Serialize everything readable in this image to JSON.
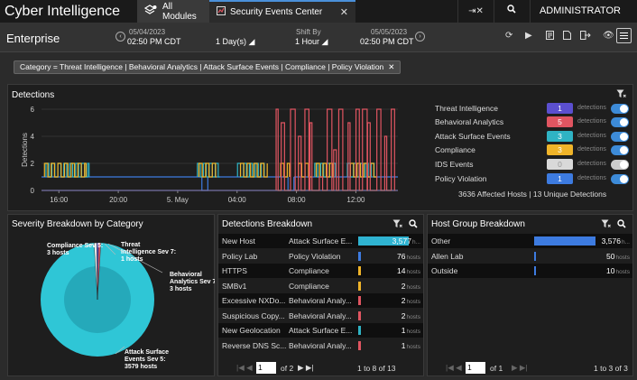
{
  "app": {
    "title": "Cyber Intelligence",
    "admin": "ADMINISTRATOR"
  },
  "tabs": [
    {
      "label": "All Modules"
    },
    {
      "label": "Security Events Center"
    }
  ],
  "timebar": {
    "scope": "Enterprise",
    "start_date": "05/04/2023",
    "start_time": "02:50 PM CDT",
    "range": "1 Day(s)",
    "shift_label": "Shift By",
    "shift_value": "1 Hour",
    "end_date": "05/05/2023",
    "end_time": "02:50 PM CDT"
  },
  "filter": {
    "text": "Category = Threat Intelligence | Behavioral Analytics | Attack Surface Events | Compliance | Policy Violation"
  },
  "detections": {
    "title": "Detections",
    "legend": [
      {
        "name": "Threat Intelligence",
        "count": "1",
        "color": "#5b4fcf",
        "label": "detections",
        "on": true
      },
      {
        "name": "Behavioral Analytics",
        "count": "5",
        "color": "#e05561",
        "label": "detections",
        "on": true
      },
      {
        "name": "Attack Surface Events",
        "count": "3",
        "color": "#2fb3c4",
        "label": "detections",
        "on": true
      },
      {
        "name": "Compliance",
        "count": "3",
        "color": "#f0b429",
        "label": "detections",
        "on": true
      },
      {
        "name": "IDS Events",
        "count": "0",
        "color": "#d9d9d9",
        "label": "detections",
        "on": false
      },
      {
        "name": "Policy Violation",
        "count": "1",
        "color": "#3d7be0",
        "label": "detections",
        "on": true
      }
    ],
    "summary": "3636 Affected Hosts | 13 Unique Detections"
  },
  "chart_data": {
    "type": "line",
    "ylabel": "Detections",
    "ylim": [
      0,
      6
    ],
    "yticks": [
      "0",
      "2",
      "4",
      "6"
    ],
    "xticks": [
      {
        "label": "16:00",
        "t": 1.17
      },
      {
        "label": "20:00",
        "t": 5.17
      },
      {
        "label": "5. May",
        "t": 9.17
      },
      {
        "label": "04:00",
        "t": 13.17
      },
      {
        "label": "08:00",
        "t": 17.17
      },
      {
        "label": "12:00",
        "t": 21.17
      }
    ],
    "xlim": [
      0,
      24
    ],
    "series": [
      {
        "name": "Policy Violation",
        "color": "#3d7be0",
        "style": "flat",
        "level": 1,
        "from": 0,
        "to": 24,
        "gaps": [
          [
            10.8,
            11.2
          ],
          [
            16.6,
            17.0
          ]
        ]
      },
      {
        "name": "Threat Intelligence",
        "color": "#5b4fcf",
        "style": "flat",
        "level": 0,
        "from": 0,
        "to": 24,
        "gaps": []
      },
      {
        "name": "Attack Surface Events",
        "color": "#2fb3c4",
        "style": "square",
        "period": 0.4,
        "lo": 1,
        "hi": 2,
        "ranges": [
          [
            0.3,
            3.2
          ],
          [
            10.5,
            12.0
          ],
          [
            13.2,
            15.0
          ],
          [
            18.4,
            19.8
          ],
          [
            20.6,
            22.5
          ]
        ]
      },
      {
        "name": "Compliance",
        "color": "#f0b429",
        "style": "square",
        "period": 0.45,
        "lo": 1,
        "hi": 2,
        "ranges": [
          [
            0.2,
            3.0
          ],
          [
            10.6,
            11.8
          ],
          [
            13.4,
            15.2
          ],
          [
            16.1,
            16.7
          ],
          [
            17.3,
            18.2
          ],
          [
            18.5,
            19.7
          ],
          [
            20.8,
            22.6
          ]
        ]
      },
      {
        "name": "Behavioral Analytics",
        "color": "#e05561",
        "style": "spikes",
        "lo": 0,
        "hi": 6,
        "ranges": [
          [
            15.8,
            23.8
          ]
        ],
        "period": 0.38
      }
    ]
  },
  "severity": {
    "title": "Severity Breakdown by Category",
    "labels": [
      {
        "text1": "Compliance Sev 5:",
        "text2": "3 hosts"
      },
      {
        "text1": "Threat",
        "text2": "Intelligence Sev 7:",
        "text3": "1 hosts"
      },
      {
        "text1": "Behavioral",
        "text2": "Analytics Sev 7:",
        "text3": "3 hosts"
      },
      {
        "text1": "Attack Surface",
        "text2": "Events Sev 5:",
        "text3": "3579 hosts"
      }
    ],
    "slices": [
      {
        "name": "Attack Surface Events Sev 5",
        "value": 3579,
        "color": "#2fc6d6"
      },
      {
        "name": "Compliance Sev 5",
        "value": 3,
        "color": "#e8e8e8"
      },
      {
        "name": "Threat Intelligence Sev 7",
        "value": 1,
        "color": "#5b4fcf"
      },
      {
        "name": "Behavioral Analytics Sev 7",
        "value": 3,
        "color": "#e05561"
      }
    ]
  },
  "breakdown": {
    "title": "Detections Breakdown",
    "rows": [
      {
        "name": "New Host",
        "category": "Attack Surface E...",
        "value": "3,577",
        "unit": "h...",
        "color": "#2fb3c4",
        "bar": true
      },
      {
        "name": "Policy Lab",
        "category": "Policy Violation",
        "value": "76",
        "unit": "hosts",
        "color": "#3d7be0"
      },
      {
        "name": "HTTPS",
        "category": "Compliance",
        "value": "14",
        "unit": "hosts",
        "color": "#f0b429"
      },
      {
        "name": "SMBv1",
        "category": "Compliance",
        "value": "2",
        "unit": "hosts",
        "color": "#f0b429"
      },
      {
        "name": "Excessive NXDo...",
        "category": "Behavioral Analy...",
        "value": "2",
        "unit": "hosts",
        "color": "#e05561"
      },
      {
        "name": "Suspicious Copy...",
        "category": "Behavioral Analy...",
        "value": "2",
        "unit": "hosts",
        "color": "#e05561"
      },
      {
        "name": "New Geolocation",
        "category": "Attack Surface E...",
        "value": "1",
        "unit": "hosts",
        "color": "#2fb3c4"
      },
      {
        "name": "Reverse DNS Sc...",
        "category": "Behavioral Analy...",
        "value": "1",
        "unit": "hosts",
        "color": "#e05561"
      }
    ],
    "page": "1",
    "of_pages": "of 2",
    "range": "1 to 8 of 13"
  },
  "hostgroup": {
    "title": "Host Group Breakdown",
    "rows": [
      {
        "name": "Other",
        "value": "3,576",
        "unit": "h...",
        "bar": true
      },
      {
        "name": "Allen Lab",
        "value": "50",
        "unit": "hosts"
      },
      {
        "name": "Outside",
        "value": "10",
        "unit": "hosts"
      }
    ],
    "page": "1",
    "of_pages": "of 1",
    "range": "1 to 3 of 3"
  }
}
